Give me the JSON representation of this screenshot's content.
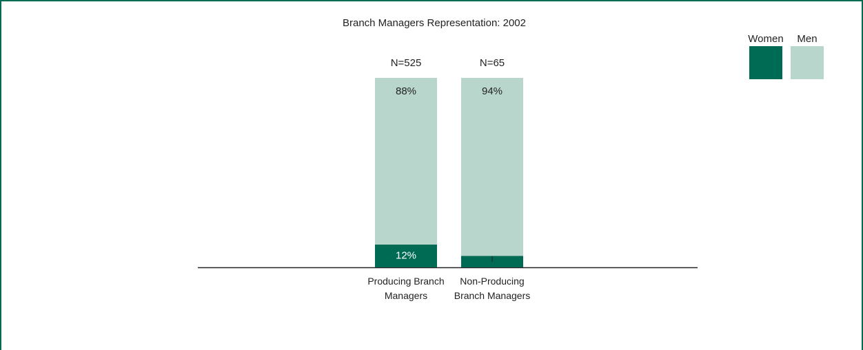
{
  "chart_data": {
    "type": "stacked_bar",
    "title": "Branch Managers Representation: 2002",
    "categories": [
      "Producing Branch Managers",
      "Non-Producing Branch Managers"
    ],
    "bar_annotations": [
      "N=525",
      "N=65"
    ],
    "series": [
      {
        "name": "Women",
        "color": "#006b54",
        "values": [
          12,
          6
        ],
        "value_labels": [
          "12%",
          "6%"
        ]
      },
      {
        "name": "Men",
        "color": "#b9d6cd",
        "values": [
          88,
          94
        ],
        "value_labels": [
          "88%",
          "94%"
        ]
      }
    ],
    "ylim": [
      0,
      100
    ],
    "legend": "top-right"
  }
}
